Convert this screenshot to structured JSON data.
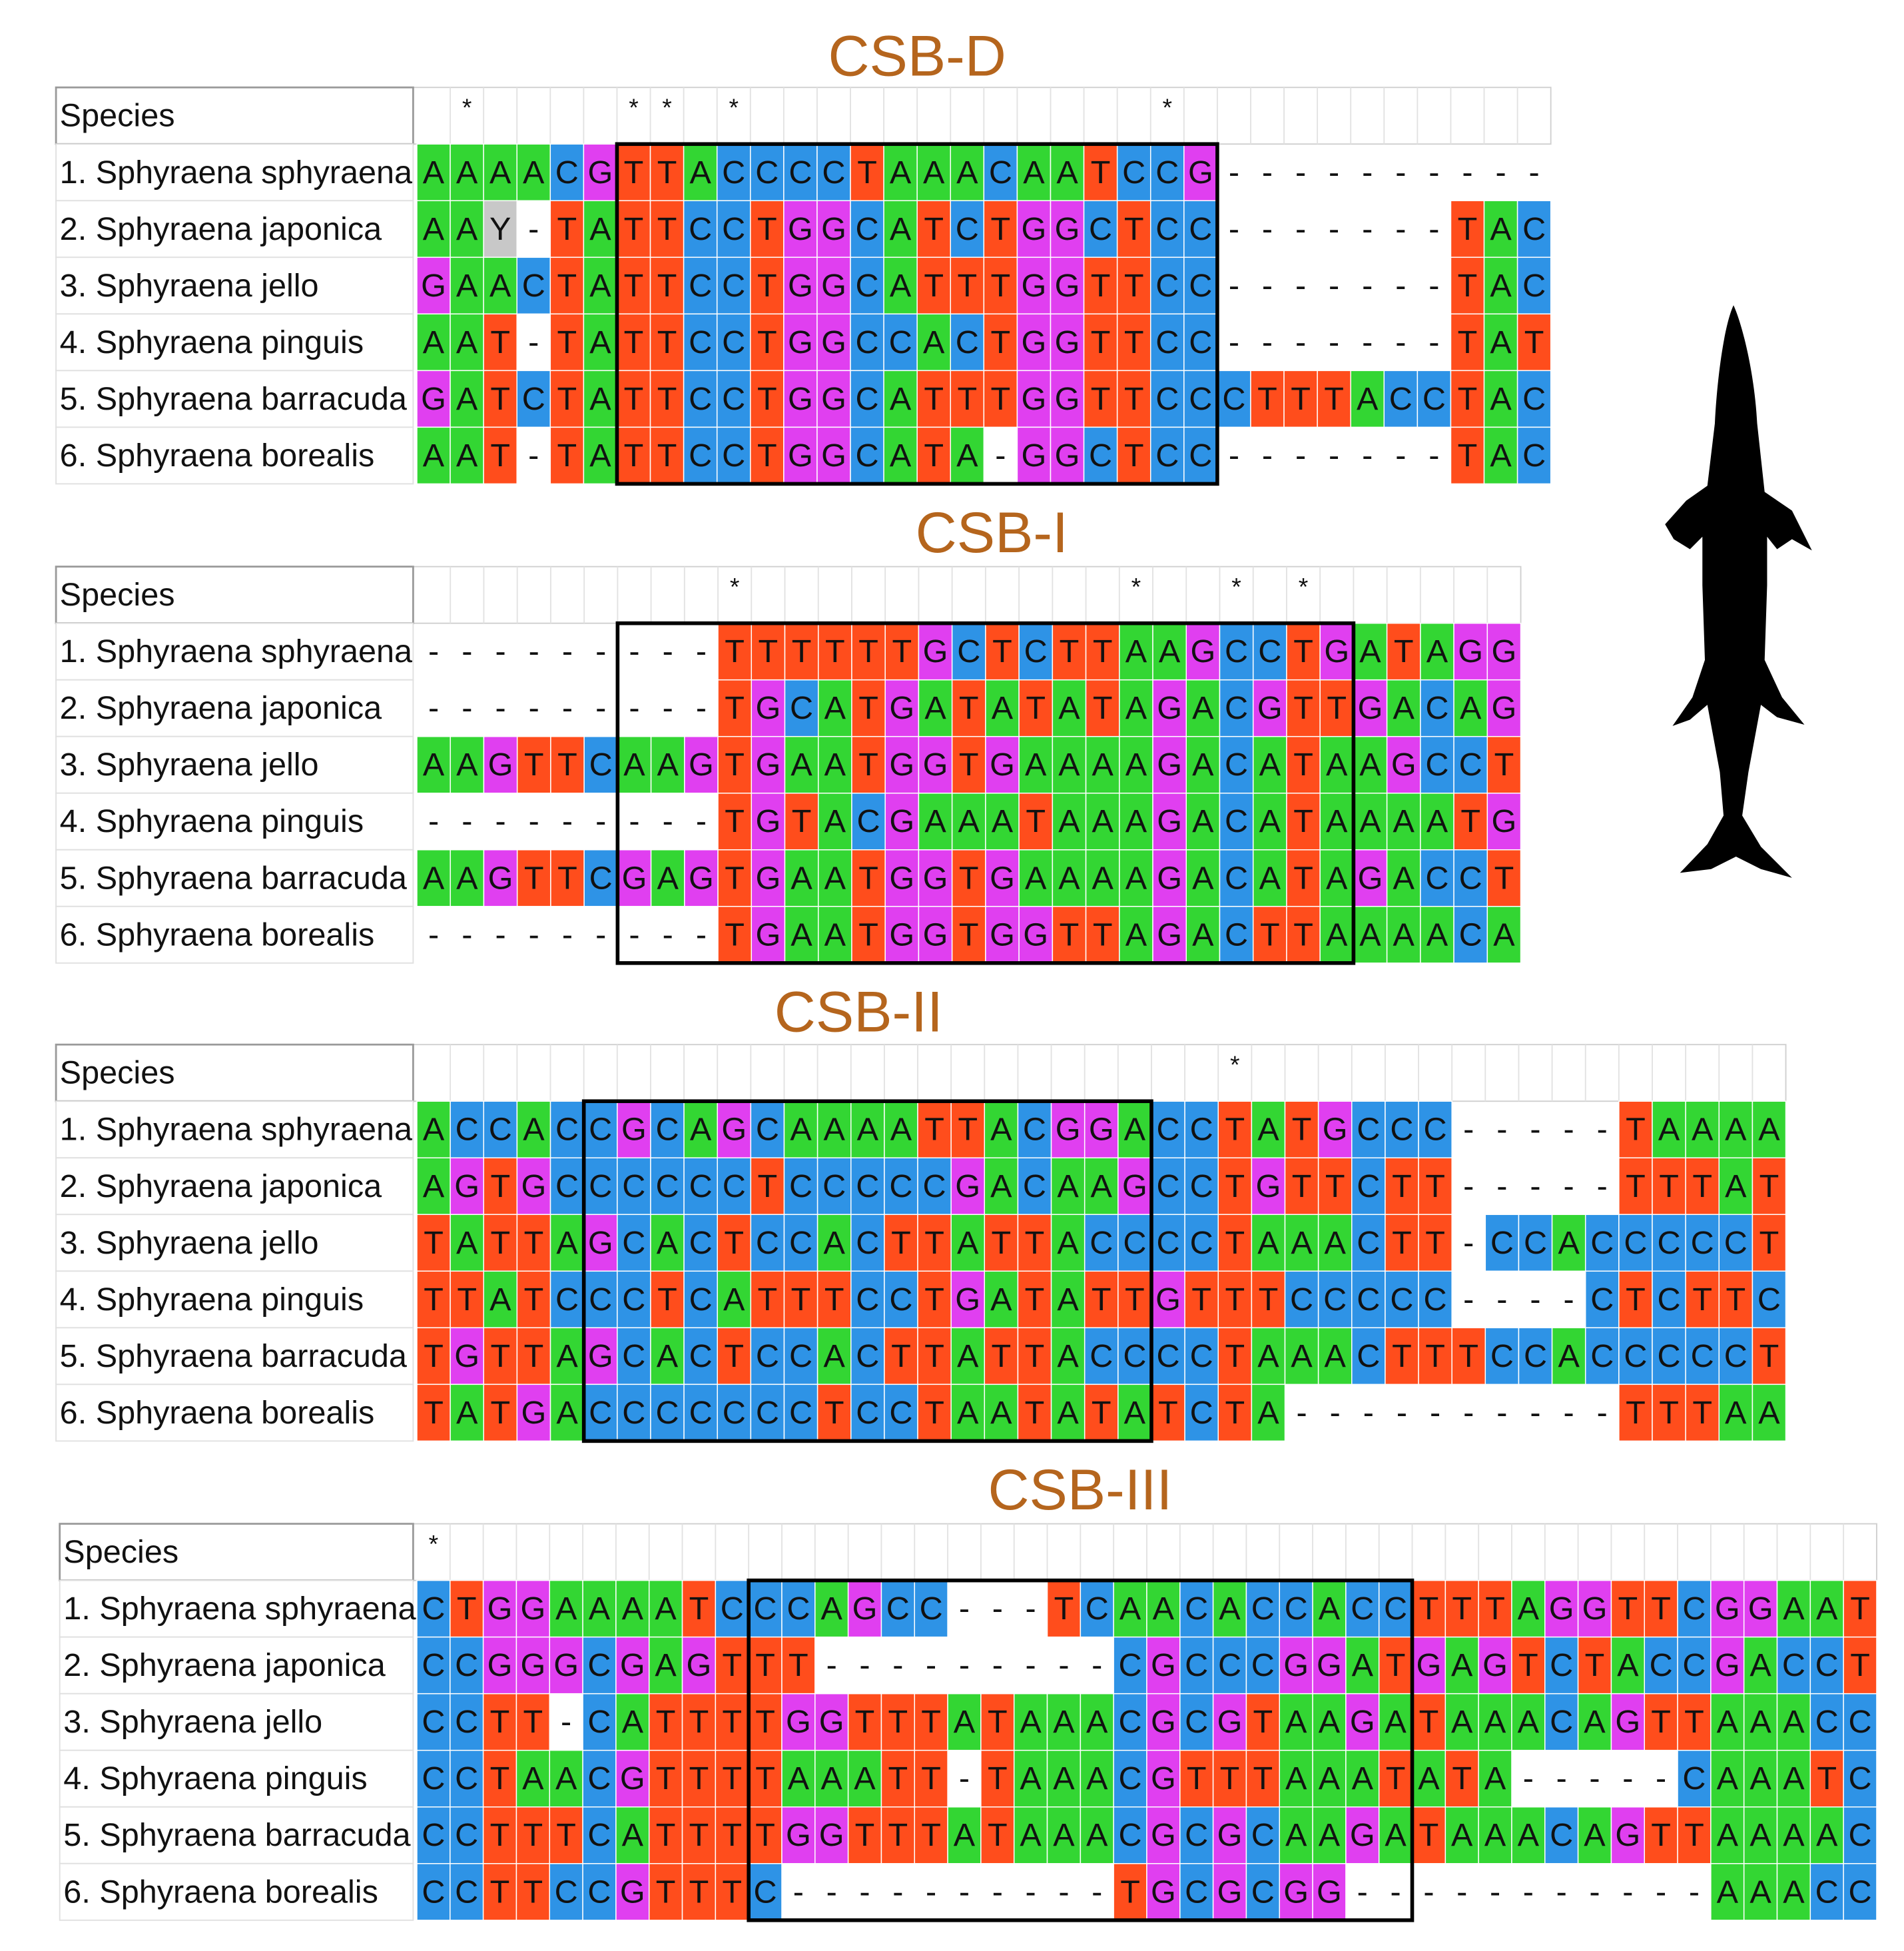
{
  "blocks": [
    {
      "title": "CSB-D",
      "header": "Species",
      "conservation": " *    ** *            *",
      "rows": [
        {
          "name": "1. Sphyraena sphyraena",
          "sequence": "AAAACGTTACCCCTAAACAATCCG----------"
        },
        {
          "name": "2. Sphyraena japonica",
          "sequence": "AAY-TATTCCTGGCATCTGGCTCC-------TAC"
        },
        {
          "name": "3. Sphyraena jello",
          "sequence": "GAACTATTCCTGGCATTTGGTTCC-------TAC"
        },
        {
          "name": "4. Sphyraena pinguis",
          "sequence": "AAT-TATTCCTGGCCACTGGTTCC-------TAT"
        },
        {
          "name": "5. Sphyraena barracuda",
          "sequence": "GATCTATTCCTGGCATTTGGTTCCCTTTACCTAC"
        },
        {
          "name": "6. Sphyraena borealis",
          "sequence": "AAT-TATTCCTGGCATA-GGCTCC-------TAC"
        }
      ]
    },
    {
      "title": "CSB-I",
      "header": "Species",
      "conservation": "         *           *  * *",
      "rows": [
        {
          "name": "1. Sphyraena sphyraena",
          "sequence": "---------TTTTTTGCTCTTAAGCCTGATAGG"
        },
        {
          "name": "2. Sphyraena japonica",
          "sequence": "---------TGCATGATATATAGACGTTGACAG"
        },
        {
          "name": "3. Sphyraena jello",
          "sequence": "AAGTTCAAGTGAATGGTGAAAAGACATAAGCCT"
        },
        {
          "name": "4. Sphyraena pinguis",
          "sequence": "---------TGTACGAAATAAAGACATAAAATG"
        },
        {
          "name": "5. Sphyraena barracuda",
          "sequence": "AAGTTCGAGTGAATGGTGAAAAGACATAGACCT"
        },
        {
          "name": "6. Sphyraena borealis",
          "sequence": "---------TGAATGGTGGTTAGACTTAAAACA"
        }
      ]
    },
    {
      "title": "CSB-II",
      "header": "Species",
      "conservation": "                        *",
      "rows": [
        {
          "name": "1. Sphyraena sphyraena",
          "sequence": "ACCACCGCAGCAAAATTACGGACCTATGCCC-----TAAAA"
        },
        {
          "name": "2. Sphyraena japonica",
          "sequence": "AGTGCCCCCCTCCCCCGACAAGCCTGTTCTT-----TTTAT"
        },
        {
          "name": "3. Sphyraena jello",
          "sequence": "TATTAGCACTCCACTTATTACCCCTAAACTT-CCACCCCCT"
        },
        {
          "name": "4. Sphyraena pinguis",
          "sequence": "TTATCCCTCATTTCCTGATATTGTTTCCCCC----CTCTTC"
        },
        {
          "name": "5. Sphyraena barracuda",
          "sequence": "TGTTAGCACTCCACTTATTACCCCTAAACTTTCCACCCCCT"
        },
        {
          "name": "6. Sphyraena borealis",
          "sequence": "TATGACCCCCCCTCCTAATATATCTA----------TTTAA"
        }
      ]
    },
    {
      "title": "CSB-III",
      "header": "Species",
      "conservation": "*",
      "rows": [
        {
          "name": "1. Sphyraena sphyraena",
          "sequence": "CTGGAAAATCCCAGCC---TCAACACCACCTTTAGGTTCGGAAT"
        },
        {
          "name": "2. Sphyraena japonica",
          "sequence": "CCGGGCGAGTTT---------CGCCCGGATGAGTCTACCGACCT"
        },
        {
          "name": "3. Sphyraena jello",
          "sequence": "CCTT-CATTTTGGTTTATAAACGCGTAAGATAAACAGTTAAACC"
        },
        {
          "name": "4. Sphyraena pinguis",
          "sequence": "CCTAACGTTTTAAATT-TAAACGTTTAAATATA-----CAAATC"
        },
        {
          "name": "5. Sphyraena barracuda",
          "sequence": "CCTTTCATTTTGGTTTATAAACGCGCAAGATAAACAGTTAAAAC"
        },
        {
          "name": "6. Sphyraena borealis",
          "sequence": "CCTTCCGTTTC----------TGCGCGG-----------AAACC"
        }
      ]
    }
  ]
}
